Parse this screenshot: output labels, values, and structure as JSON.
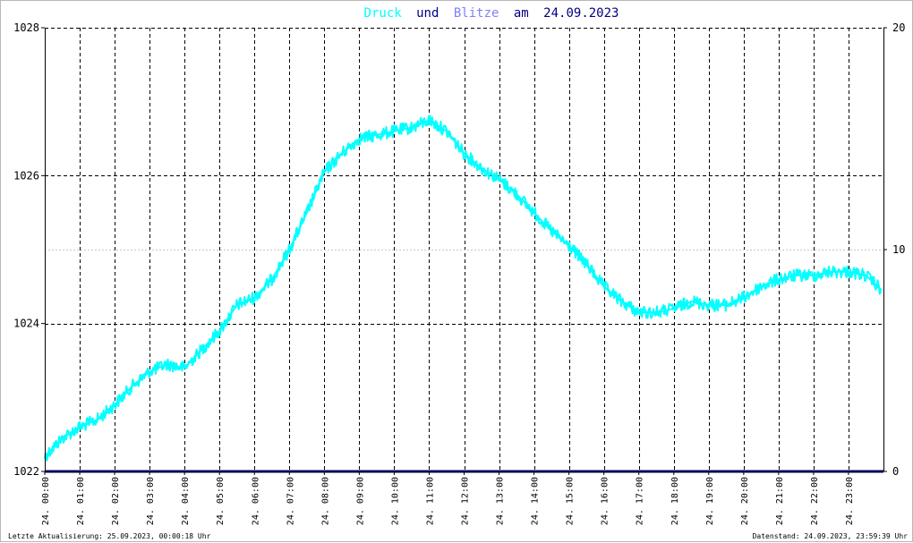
{
  "chart_data": {
    "type": "line",
    "title_parts": {
      "series1": "Druck",
      "conj": "und",
      "series2": "Blitze",
      "prep": "am",
      "date": "24.09.2023"
    },
    "x_tick_labels": [
      "24. 00:00",
      "24. 01:00",
      "24. 02:00",
      "24. 03:00",
      "24. 04:00",
      "24. 05:00",
      "24. 06:00",
      "24. 07:00",
      "24. 08:00",
      "24. 09:00",
      "24. 10:00",
      "24. 11:00",
      "24. 12:00",
      "24. 13:00",
      "24. 14:00",
      "24. 15:00",
      "24. 16:00",
      "24. 17:00",
      "24. 18:00",
      "24. 19:00",
      "24. 20:00",
      "24. 21:00",
      "24. 22:00",
      "24. 23:00"
    ],
    "xlim_hours": [
      0,
      24
    ],
    "y_left": {
      "ticks": [
        1022,
        1024,
        1026,
        1028
      ],
      "ylim": [
        1022,
        1028
      ]
    },
    "y_right": {
      "ticks": [
        0,
        10,
        20
      ],
      "ylim": [
        0,
        20
      ]
    },
    "grid": true,
    "series": [
      {
        "name": "Druck",
        "axis": "left",
        "color": "#00ffff",
        "x_hours": [
          0,
          0.5,
          1,
          1.5,
          2,
          2.5,
          3,
          3.5,
          4,
          4.5,
          5,
          5.5,
          6,
          6.5,
          7,
          7.5,
          8,
          8.5,
          9,
          9.5,
          10,
          10.5,
          11,
          11.5,
          12,
          12.5,
          13,
          13.5,
          14,
          14.5,
          15,
          15.5,
          16,
          16.5,
          17,
          17.5,
          18,
          18.5,
          19,
          19.5,
          20,
          20.5,
          21,
          21.5,
          22,
          22.5,
          23,
          23.5,
          23.95
        ],
        "values": [
          1022.2,
          1022.45,
          1022.6,
          1022.7,
          1022.9,
          1023.15,
          1023.35,
          1023.45,
          1023.4,
          1023.65,
          1023.9,
          1024.25,
          1024.35,
          1024.6,
          1025.0,
          1025.5,
          1026.05,
          1026.3,
          1026.5,
          1026.55,
          1026.6,
          1026.65,
          1026.75,
          1026.6,
          1026.3,
          1026.1,
          1025.95,
          1025.75,
          1025.5,
          1025.25,
          1025.05,
          1024.8,
          1024.5,
          1024.3,
          1024.15,
          1024.15,
          1024.2,
          1024.3,
          1024.25,
          1024.25,
          1024.35,
          1024.5,
          1024.6,
          1024.65,
          1024.65,
          1024.7,
          1024.7,
          1024.65,
          1024.45
        ]
      },
      {
        "name": "Blitze",
        "axis": "right",
        "color": "#000080",
        "x_hours": [
          0,
          24
        ],
        "values": [
          0,
          0
        ]
      }
    ],
    "colors": {
      "druck": "#00ffff",
      "blitze": "#8080ff",
      "title_text": "#000080",
      "baseline": "#000080"
    }
  },
  "footer": {
    "left": "Letzte Aktualisierung: 25.09.2023, 00:00:18 Uhr",
    "right": "Datenstand: 24.09.2023, 23:59:39 Uhr"
  }
}
